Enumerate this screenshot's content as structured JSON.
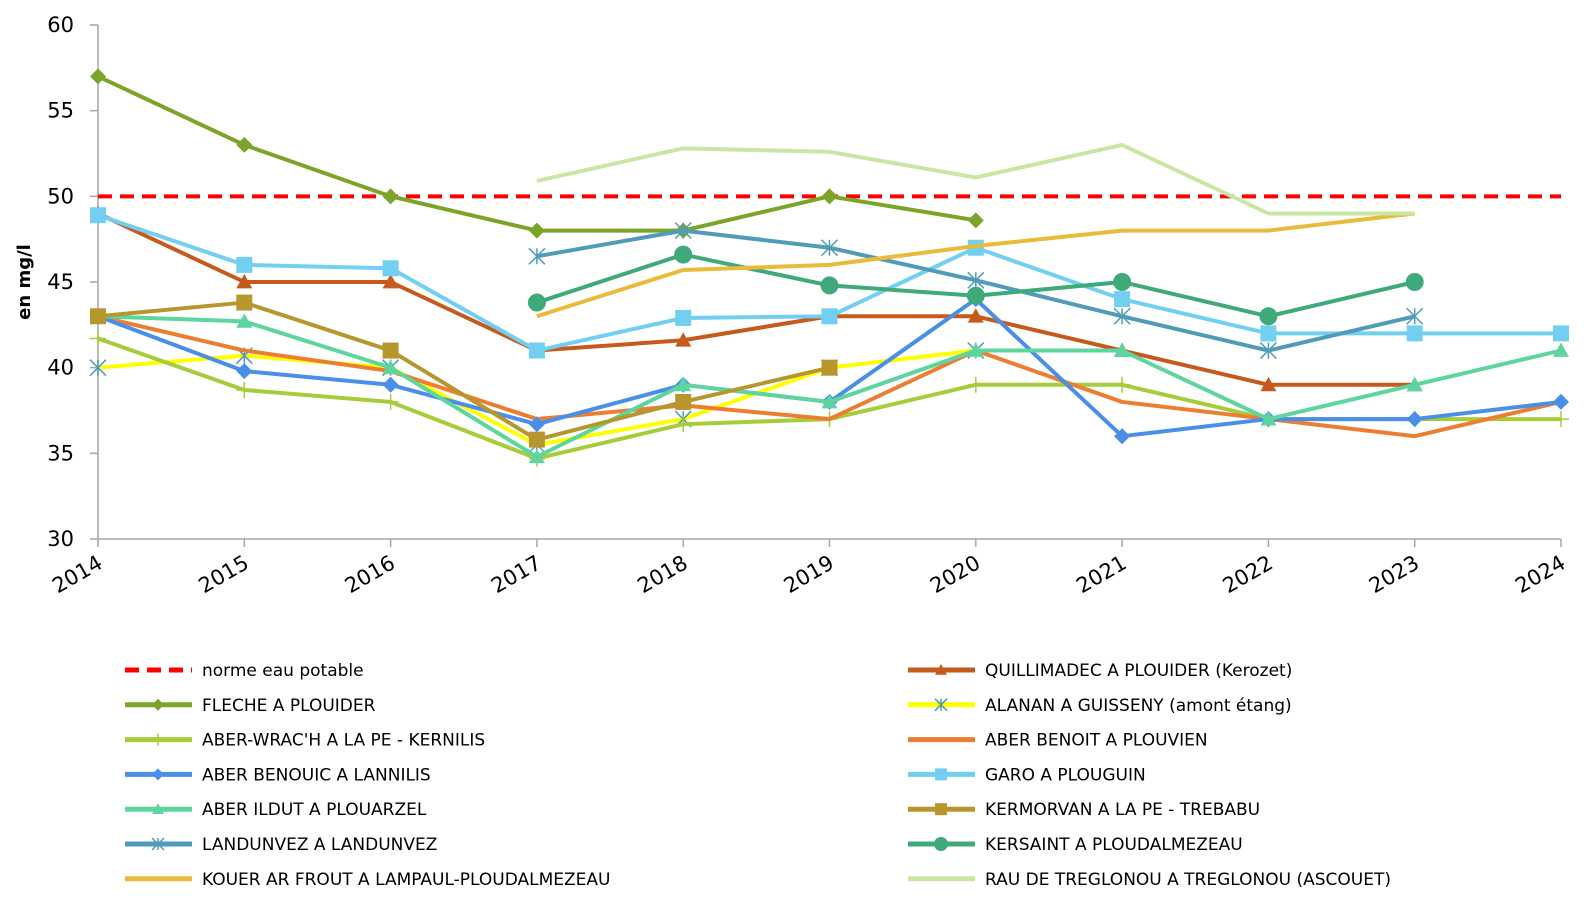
{
  "chart_data": {
    "type": "line",
    "y_label": "en mg/l",
    "x": [
      "2014",
      "2015",
      "2016",
      "2017",
      "2018",
      "2019",
      "2020",
      "2021",
      "2022",
      "2023",
      "2024"
    ],
    "ylim": [
      30,
      60
    ],
    "yticks": [
      30,
      35,
      40,
      45,
      50,
      55,
      60
    ],
    "series": [
      {
        "name": "norme eau potable",
        "color": "#ff0000",
        "dash": true,
        "marker": "none",
        "values": [
          50,
          50,
          50,
          50,
          50,
          50,
          50,
          50,
          50,
          50,
          50
        ]
      },
      {
        "name": "QUILLIMADEC A PLOUIDER (Kerozet)",
        "color": "#c55a1c",
        "marker": "triangle",
        "values": [
          49,
          45,
          45,
          41,
          41.6,
          43,
          43,
          41,
          39,
          39,
          null
        ]
      },
      {
        "name": "FLECHE A PLOUIDER",
        "color": "#7ba428",
        "marker": "diamond",
        "values": [
          57,
          53,
          50,
          48,
          48,
          50,
          48.6,
          null,
          null,
          null,
          null
        ]
      },
      {
        "name": "ALANAN A GUISSENY (amont étang)",
        "color": "#ffff00",
        "marker": "x",
        "values": [
          40,
          40.7,
          40,
          35.5,
          37,
          40,
          41,
          null,
          null,
          null,
          null
        ]
      },
      {
        "name": "ABER-WRAC'H A LA PE - KERNILIS",
        "color": "#a6cc3a",
        "marker": "plus",
        "values": [
          41.7,
          38.7,
          38,
          34.7,
          36.7,
          37,
          39,
          39,
          37,
          37,
          37
        ]
      },
      {
        "name": "ABER BENOIT A PLOUVIEN",
        "color": "#ed7d31",
        "marker": "none",
        "values": [
          43,
          41,
          39.8,
          37,
          37.8,
          37,
          41,
          38,
          37,
          36,
          38
        ]
      },
      {
        "name": "ABER BENOUIC A LANNILIS",
        "color": "#4a8fe7",
        "marker": "diamond",
        "values": [
          43,
          39.8,
          39,
          36.7,
          39,
          38,
          44,
          36,
          37,
          37,
          38
        ]
      },
      {
        "name": "GARO A PLOUGUIN",
        "color": "#72cff2",
        "marker": "square",
        "values": [
          48.9,
          46,
          45.8,
          41,
          42.9,
          43,
          47,
          44,
          42,
          42,
          42
        ]
      },
      {
        "name": "ABER ILDUT A PLOUARZEL",
        "color": "#5ed59f",
        "marker": "triangle",
        "values": [
          43,
          42.7,
          40,
          34.8,
          39,
          38,
          41,
          41,
          37,
          39,
          41
        ]
      },
      {
        "name": "KERMORVAN A LA PE - TREBABU",
        "color": "#b8962e",
        "marker": "square",
        "values": [
          43,
          43.8,
          41,
          35.8,
          38,
          40,
          null,
          null,
          null,
          null,
          null
        ]
      },
      {
        "name": "LANDUNVEZ A LANDUNVEZ",
        "color": "#4f9bb8",
        "marker": "x",
        "values": [
          null,
          null,
          null,
          46.5,
          48,
          47,
          45.1,
          43,
          41,
          43,
          null
        ]
      },
      {
        "name": "KERSAINT A PLOUDALMEZEAU",
        "color": "#3fa97a",
        "marker": "circle",
        "values": [
          null,
          null,
          null,
          43.8,
          46.6,
          44.8,
          44.2,
          45,
          43,
          45,
          null
        ]
      },
      {
        "name": "KOUER AR FROUT A LAMPAUL-PLOUDALMEZEAU",
        "color": "#e8bb3a",
        "marker": "none",
        "values": [
          null,
          null,
          null,
          43,
          45.7,
          46,
          47.1,
          48,
          48,
          49,
          null
        ]
      },
      {
        "name": "RAU DE TREGLONOU A TREGLONOU (ASCOUET)",
        "color": "#c9e6a3",
        "marker": "none",
        "values": [
          null,
          null,
          null,
          50.9,
          52.8,
          52.6,
          51.1,
          53,
          49,
          49,
          null
        ]
      }
    ]
  }
}
